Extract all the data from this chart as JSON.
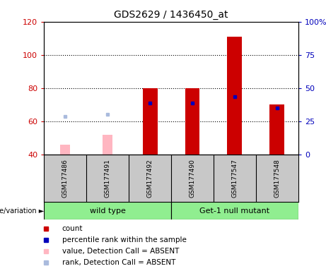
{
  "title": "GDS2629 / 1436450_at",
  "samples": [
    "GSM177486",
    "GSM177491",
    "GSM177492",
    "GSM177490",
    "GSM177547",
    "GSM177548"
  ],
  "ylim_left": [
    40,
    120
  ],
  "ylim_right": [
    0,
    100
  ],
  "yticks_left": [
    40,
    60,
    80,
    100,
    120
  ],
  "yticks_right": [
    0,
    25,
    50,
    75,
    100
  ],
  "yticklabels_right": [
    "0",
    "25",
    "50",
    "75",
    "100%"
  ],
  "count_values": [
    null,
    null,
    80,
    80,
    111,
    70
  ],
  "count_base": 40,
  "rank_values_left": [
    null,
    null,
    71,
    71,
    75,
    68
  ],
  "absent_value_bars": [
    46,
    52,
    null,
    null,
    null,
    null
  ],
  "absent_rank_dots_left": [
    63,
    64,
    null,
    null,
    null,
    null
  ],
  "bar_width": 0.35,
  "count_color": "#CC0000",
  "rank_color": "#0000BB",
  "absent_value_color": "#FFB6C1",
  "absent_rank_color": "#AABBDD",
  "bg_color": "#C8C8C8",
  "group_color": "#90EE90",
  "legend_items": [
    {
      "label": "count",
      "color": "#CC0000"
    },
    {
      "label": "percentile rank within the sample",
      "color": "#0000BB"
    },
    {
      "label": "value, Detection Call = ABSENT",
      "color": "#FFB6C1"
    },
    {
      "label": "rank, Detection Call = ABSENT",
      "color": "#AABBDD"
    }
  ],
  "left_axis_color": "#CC0000",
  "right_axis_color": "#0000BB",
  "group_ranges": [
    [
      0,
      2,
      "wild type"
    ],
    [
      3,
      5,
      "Get-1 null mutant"
    ]
  ],
  "left_label": "genotype/variation ►"
}
